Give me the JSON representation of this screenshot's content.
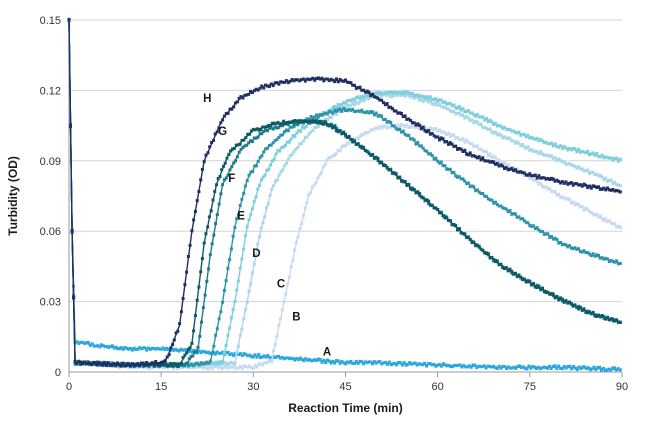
{
  "chart_data": {
    "type": "scatter",
    "title": "",
    "xlabel": "Reaction Time (min)",
    "ylabel": "Turbidity (OD)",
    "xlim": [
      0,
      90
    ],
    "ylim": [
      0,
      0.15
    ],
    "x_ticks": [
      "0",
      "15",
      "30",
      "45",
      "60",
      "75",
      "90"
    ],
    "y_ticks": [
      "0",
      "0.03",
      "0.06",
      "0.09",
      "0.12",
      "0.15"
    ],
    "grid": "horizontal",
    "legend": "none",
    "series": [
      {
        "name": "A",
        "color": "#2aa7dd",
        "points": [
          [
            0,
            0.15
          ],
          [
            0.5,
            0.06
          ],
          [
            1,
            0.013
          ],
          [
            5,
            0.011
          ],
          [
            10,
            0.01
          ],
          [
            15,
            0.01
          ],
          [
            20,
            0.009
          ],
          [
            25,
            0.008
          ],
          [
            30,
            0.007
          ],
          [
            35,
            0.006
          ],
          [
            40,
            0.005
          ],
          [
            45,
            0.004
          ],
          [
            50,
            0.004
          ],
          [
            60,
            0.003
          ],
          [
            70,
            0.002
          ],
          [
            80,
            0.002
          ],
          [
            90,
            0.001
          ]
        ]
      },
      {
        "name": "B",
        "color": "#c6daf2",
        "points": [
          [
            0,
            0.15
          ],
          [
            0.5,
            0.06
          ],
          [
            1,
            0.004
          ],
          [
            10,
            0.002
          ],
          [
            20,
            0.002
          ],
          [
            30,
            0.002
          ],
          [
            33,
            0.005
          ],
          [
            35,
            0.03
          ],
          [
            37,
            0.055
          ],
          [
            39,
            0.075
          ],
          [
            42,
            0.09
          ],
          [
            45,
            0.097
          ],
          [
            50,
            0.104
          ],
          [
            55,
            0.105
          ],
          [
            60,
            0.103
          ],
          [
            65,
            0.098
          ],
          [
            70,
            0.09
          ],
          [
            75,
            0.083
          ],
          [
            80,
            0.075
          ],
          [
            85,
            0.068
          ],
          [
            90,
            0.061
          ]
        ]
      },
      {
        "name": "C",
        "color": "#a8d7e8",
        "points": [
          [
            0,
            0.15
          ],
          [
            0.5,
            0.06
          ],
          [
            1,
            0.004
          ],
          [
            10,
            0.003
          ],
          [
            20,
            0.003
          ],
          [
            27,
            0.004
          ],
          [
            29,
            0.03
          ],
          [
            31,
            0.058
          ],
          [
            33,
            0.078
          ],
          [
            36,
            0.092
          ],
          [
            40,
            0.104
          ],
          [
            45,
            0.113
          ],
          [
            50,
            0.118
          ],
          [
            55,
            0.118
          ],
          [
            60,
            0.114
          ],
          [
            65,
            0.108
          ],
          [
            70,
            0.101
          ],
          [
            75,
            0.095
          ],
          [
            80,
            0.09
          ],
          [
            85,
            0.085
          ],
          [
            90,
            0.079
          ]
        ]
      },
      {
        "name": "D",
        "color": "#7ccfdb",
        "points": [
          [
            0,
            0.15
          ],
          [
            0.5,
            0.06
          ],
          [
            1,
            0.004
          ],
          [
            10,
            0.003
          ],
          [
            20,
            0.003
          ],
          [
            25,
            0.004
          ],
          [
            27,
            0.03
          ],
          [
            29,
            0.062
          ],
          [
            31,
            0.08
          ],
          [
            34,
            0.094
          ],
          [
            38,
            0.104
          ],
          [
            42,
            0.111
          ],
          [
            45,
            0.115
          ],
          [
            50,
            0.119
          ],
          [
            55,
            0.119
          ],
          [
            60,
            0.116
          ],
          [
            65,
            0.111
          ],
          [
            70,
            0.105
          ],
          [
            75,
            0.1
          ],
          [
            80,
            0.096
          ],
          [
            85,
            0.093
          ],
          [
            90,
            0.09
          ]
        ]
      },
      {
        "name": "E",
        "color": "#2e93a8",
        "points": [
          [
            0,
            0.15
          ],
          [
            0.5,
            0.06
          ],
          [
            1,
            0.004
          ],
          [
            10,
            0.003
          ],
          [
            20,
            0.003
          ],
          [
            23,
            0.004
          ],
          [
            25,
            0.03
          ],
          [
            27,
            0.062
          ],
          [
            29,
            0.082
          ],
          [
            32,
            0.095
          ],
          [
            36,
            0.104
          ],
          [
            40,
            0.109
          ],
          [
            45,
            0.112
          ],
          [
            50,
            0.11
          ],
          [
            55,
            0.101
          ],
          [
            60,
            0.09
          ],
          [
            65,
            0.08
          ],
          [
            70,
            0.071
          ],
          [
            75,
            0.063
          ],
          [
            80,
            0.055
          ],
          [
            85,
            0.05
          ],
          [
            90,
            0.046
          ]
        ]
      },
      {
        "name": "F",
        "color": "#1e7a8c",
        "points": [
          [
            0,
            0.15
          ],
          [
            0.5,
            0.06
          ],
          [
            1,
            0.004
          ],
          [
            10,
            0.003
          ],
          [
            19,
            0.003
          ],
          [
            21,
            0.01
          ],
          [
            23,
            0.05
          ],
          [
            25,
            0.08
          ],
          [
            28,
            0.095
          ],
          [
            32,
            0.103
          ],
          [
            36,
            0.106
          ],
          [
            40,
            0.107
          ],
          [
            43,
            0.105
          ],
          [
            45,
            0.101
          ],
          [
            50,
            0.091
          ],
          [
            55,
            0.08
          ],
          [
            60,
            0.069
          ],
          [
            65,
            0.057
          ],
          [
            70,
            0.046
          ],
          [
            75,
            0.038
          ],
          [
            80,
            0.031
          ],
          [
            85,
            0.025
          ],
          [
            90,
            0.021
          ]
        ]
      },
      {
        "name": "G",
        "color": "#0d5966",
        "points": [
          [
            0,
            0.15
          ],
          [
            0.5,
            0.06
          ],
          [
            1,
            0.004
          ],
          [
            10,
            0.003
          ],
          [
            18,
            0.003
          ],
          [
            20,
            0.012
          ],
          [
            22,
            0.055
          ],
          [
            24,
            0.08
          ],
          [
            26,
            0.093
          ],
          [
            30,
            0.103
          ],
          [
            34,
            0.106
          ],
          [
            38,
            0.107
          ],
          [
            42,
            0.106
          ],
          [
            45,
            0.101
          ],
          [
            50,
            0.091
          ],
          [
            55,
            0.08
          ],
          [
            60,
            0.069
          ],
          [
            65,
            0.057
          ],
          [
            70,
            0.046
          ],
          [
            75,
            0.038
          ],
          [
            80,
            0.031
          ],
          [
            85,
            0.025
          ],
          [
            90,
            0.021
          ]
        ]
      },
      {
        "name": "H",
        "color": "#1f2f63",
        "points": [
          [
            0,
            0.15
          ],
          [
            0.5,
            0.06
          ],
          [
            1,
            0.004
          ],
          [
            10,
            0.003
          ],
          [
            15,
            0.004
          ],
          [
            16,
            0.006
          ],
          [
            18,
            0.02
          ],
          [
            20,
            0.06
          ],
          [
            22,
            0.09
          ],
          [
            25,
            0.108
          ],
          [
            28,
            0.117
          ],
          [
            32,
            0.122
          ],
          [
            36,
            0.124
          ],
          [
            40,
            0.125
          ],
          [
            45,
            0.124
          ],
          [
            50,
            0.117
          ],
          [
            55,
            0.108
          ],
          [
            60,
            0.1
          ],
          [
            65,
            0.093
          ],
          [
            70,
            0.088
          ],
          [
            75,
            0.084
          ],
          [
            80,
            0.081
          ],
          [
            85,
            0.079
          ],
          [
            90,
            0.077
          ]
        ]
      }
    ],
    "annotations": [
      {
        "text": "H",
        "x": 22.5,
        "y": 0.115
      },
      {
        "text": "G",
        "x": 25.0,
        "y": 0.101
      },
      {
        "text": "F",
        "x": 26.5,
        "y": 0.081
      },
      {
        "text": "E",
        "x": 28.0,
        "y": 0.065
      },
      {
        "text": "D",
        "x": 30.5,
        "y": 0.049
      },
      {
        "text": "C",
        "x": 34.5,
        "y": 0.036
      },
      {
        "text": "B",
        "x": 37.0,
        "y": 0.022
      },
      {
        "text": "A",
        "x": 42.0,
        "y": 0.007
      }
    ]
  }
}
